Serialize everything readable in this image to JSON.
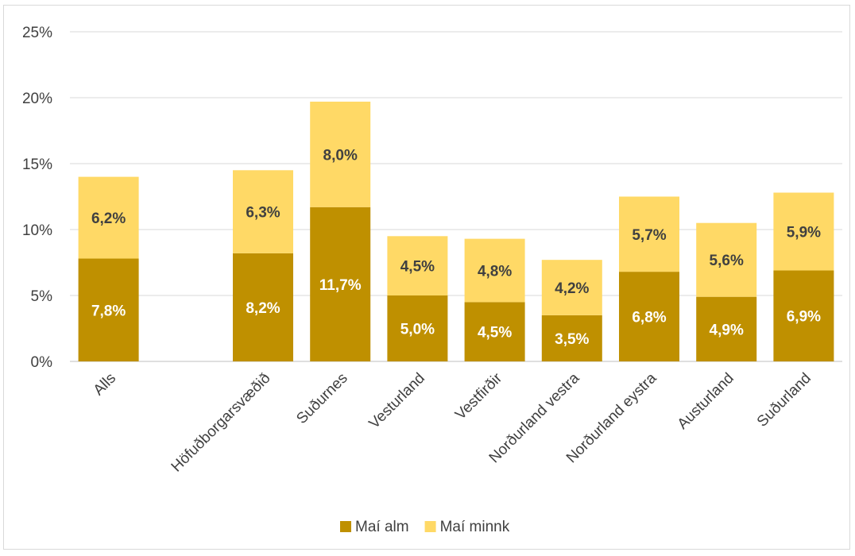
{
  "chart_data": {
    "type": "bar",
    "stacked": true,
    "categories": [
      "Alls",
      "",
      "Höfuðborgarsvæðið",
      "Suðurnes",
      "Vesturland",
      "Vestfirðir",
      "Norðurland vestra",
      "Norðurland eystra",
      "Austurland",
      "Suðurland"
    ],
    "series": [
      {
        "name": "Maí alm",
        "color": "#bf9000",
        "values": [
          7.8,
          null,
          8.2,
          11.7,
          5.0,
          4.5,
          3.5,
          6.8,
          4.9,
          6.9
        ],
        "labels": [
          "7,8%",
          "",
          "8,2%",
          "11,7%",
          "5,0%",
          "4,5%",
          "3,5%",
          "6,8%",
          "4,9%",
          "6,9%"
        ],
        "label_color": "#ffffff"
      },
      {
        "name": "Maí minnk",
        "color": "#ffd966",
        "values": [
          6.2,
          null,
          6.3,
          8.0,
          4.5,
          4.8,
          4.2,
          5.7,
          5.6,
          5.9
        ],
        "labels": [
          "6,2%",
          "",
          "6,3%",
          "8,0%",
          "4,5%",
          "4,8%",
          "4,2%",
          "5,7%",
          "5,6%",
          "5,9%"
        ],
        "label_color": "#404040"
      }
    ],
    "ylim": [
      0,
      25
    ],
    "yticks": [
      0,
      5,
      10,
      15,
      20,
      25
    ],
    "ytick_labels": [
      "0%",
      "5%",
      "10%",
      "15%",
      "20%",
      "25%"
    ],
    "xlabel": "",
    "ylabel": "",
    "title": "",
    "grid": true,
    "legend_position": "bottom"
  }
}
